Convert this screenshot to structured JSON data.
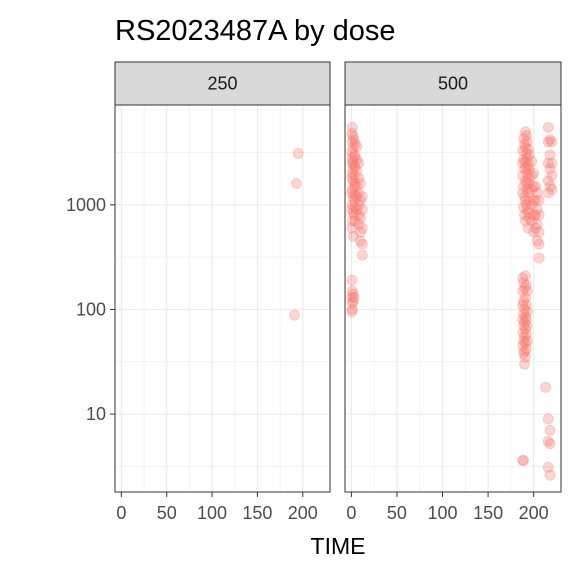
{
  "chart_data": {
    "type": "scatter",
    "title": "RS2023487A by dose",
    "xlabel": "TIME",
    "ylabel": "",
    "y_scale": "log10",
    "xlim": [
      -7,
      230
    ],
    "ylim": [
      1.8,
      9000
    ],
    "x_ticks": [
      0,
      50,
      100,
      150,
      200
    ],
    "x_tick_labels": [
      "0",
      "50",
      "100",
      "150",
      "200"
    ],
    "y_ticks": [
      10,
      100,
      1000
    ],
    "y_tick_labels": [
      "10",
      "100",
      "1000"
    ],
    "point_color": "#f8766d",
    "point_opacity": 0.3,
    "grid": true,
    "panels": [
      {
        "label": "250",
        "points": [
          [
            195,
            3100
          ],
          [
            193,
            1600
          ],
          [
            191,
            88
          ]
        ]
      },
      {
        "label": "500",
        "points": [
          [
            0.5,
            4800
          ],
          [
            0.5,
            3200
          ],
          [
            0.5,
            2500
          ],
          [
            0.5,
            1800
          ],
          [
            0.5,
            1300
          ],
          [
            0.5,
            900
          ],
          [
            0.5,
            600
          ],
          [
            0.5,
            190
          ],
          [
            0.5,
            130
          ],
          [
            0.5,
            95
          ],
          [
            1,
            5500
          ],
          [
            1,
            4000
          ],
          [
            1,
            2800
          ],
          [
            1,
            2000
          ],
          [
            1,
            1400
          ],
          [
            1,
            1000
          ],
          [
            1,
            700
          ],
          [
            1,
            150
          ],
          [
            1,
            115
          ],
          [
            1,
            100
          ],
          [
            2,
            4500
          ],
          [
            2,
            3500
          ],
          [
            2,
            2600
          ],
          [
            2,
            2200
          ],
          [
            2,
            1700
          ],
          [
            2,
            1200
          ],
          [
            2,
            850
          ],
          [
            2,
            500
          ],
          [
            2,
            140
          ],
          [
            2,
            120
          ],
          [
            3,
            4200
          ],
          [
            3,
            3000
          ],
          [
            3,
            2400
          ],
          [
            3,
            1900
          ],
          [
            3,
            1500
          ],
          [
            3,
            1100
          ],
          [
            3,
            800
          ],
          [
            3,
            130
          ],
          [
            4,
            3800
          ],
          [
            4,
            2900
          ],
          [
            4,
            2300
          ],
          [
            4,
            1600
          ],
          [
            4,
            1250
          ],
          [
            4,
            950
          ],
          [
            4,
            700
          ],
          [
            6,
            3600
          ],
          [
            6,
            2700
          ],
          [
            6,
            2100
          ],
          [
            6,
            1500
          ],
          [
            6,
            1200
          ],
          [
            6,
            900
          ],
          [
            8,
            2500
          ],
          [
            8,
            1800
          ],
          [
            8,
            1300
          ],
          [
            8,
            1000
          ],
          [
            8,
            800
          ],
          [
            8,
            650
          ],
          [
            10,
            1600
          ],
          [
            10,
            1100
          ],
          [
            10,
            750
          ],
          [
            10,
            550
          ],
          [
            10,
            450
          ],
          [
            12,
            1200
          ],
          [
            12,
            900
          ],
          [
            12,
            600
          ],
          [
            12,
            420
          ],
          [
            12,
            330
          ],
          [
            188,
            3300
          ],
          [
            188,
            2500
          ],
          [
            188,
            1900
          ],
          [
            188,
            1300
          ],
          [
            188,
            200
          ],
          [
            188,
            150
          ],
          [
            188,
            110
          ],
          [
            188,
            80
          ],
          [
            188,
            60
          ],
          [
            188,
            45
          ],
          [
            188,
            3.6
          ],
          [
            189,
            4300
          ],
          [
            189,
            2700
          ],
          [
            189,
            1500
          ],
          [
            189,
            950
          ],
          [
            189,
            180
          ],
          [
            189,
            120
          ],
          [
            189,
            90
          ],
          [
            189,
            70
          ],
          [
            189,
            50
          ],
          [
            189,
            38
          ],
          [
            189,
            3.6
          ],
          [
            190,
            3800
          ],
          [
            190,
            2200
          ],
          [
            190,
            1200
          ],
          [
            190,
            800
          ],
          [
            190,
            160
          ],
          [
            190,
            100
          ],
          [
            190,
            75
          ],
          [
            190,
            55
          ],
          [
            190,
            40
          ],
          [
            190,
            30
          ],
          [
            191,
            5000
          ],
          [
            191,
            3500
          ],
          [
            191,
            2600
          ],
          [
            191,
            1700
          ],
          [
            191,
            1100
          ],
          [
            191,
            700
          ],
          [
            191,
            210
          ],
          [
            191,
            130
          ],
          [
            191,
            85
          ],
          [
            191,
            65
          ],
          [
            191,
            48
          ],
          [
            191,
            35
          ],
          [
            192,
            4600
          ],
          [
            192,
            3100
          ],
          [
            192,
            2300
          ],
          [
            192,
            1600
          ],
          [
            192,
            1000
          ],
          [
            192,
            170
          ],
          [
            192,
            110
          ],
          [
            192,
            80
          ],
          [
            192,
            58
          ],
          [
            192,
            42
          ],
          [
            193,
            4000
          ],
          [
            193,
            2800
          ],
          [
            193,
            2000
          ],
          [
            193,
            1400
          ],
          [
            193,
            900
          ],
          [
            193,
            150
          ],
          [
            193,
            95
          ],
          [
            193,
            70
          ],
          [
            193,
            50
          ],
          [
            194,
            3400
          ],
          [
            194,
            2400
          ],
          [
            194,
            1800
          ],
          [
            194,
            1300
          ],
          [
            194,
            850
          ],
          [
            194,
            600
          ],
          [
            195,
            3000
          ],
          [
            195,
            2200
          ],
          [
            195,
            1600
          ],
          [
            195,
            1100
          ],
          [
            195,
            750
          ],
          [
            198,
            2600
          ],
          [
            198,
            1900
          ],
          [
            198,
            1400
          ],
          [
            198,
            1000
          ],
          [
            198,
            700
          ],
          [
            200,
            2000
          ],
          [
            200,
            1500
          ],
          [
            200,
            1100
          ],
          [
            200,
            800
          ],
          [
            200,
            550
          ],
          [
            202,
            1500
          ],
          [
            202,
            1100
          ],
          [
            202,
            800
          ],
          [
            202,
            600
          ],
          [
            204,
            1300
          ],
          [
            204,
            900
          ],
          [
            204,
            650
          ],
          [
            204,
            450
          ],
          [
            206,
            1100
          ],
          [
            206,
            800
          ],
          [
            206,
            550
          ],
          [
            206,
            420
          ],
          [
            206,
            310
          ],
          [
            213,
            18
          ],
          [
            216,
            5500
          ],
          [
            216,
            4000
          ],
          [
            216,
            2500
          ],
          [
            216,
            1700
          ],
          [
            216,
            1300
          ],
          [
            216,
            9
          ],
          [
            216,
            5.5
          ],
          [
            216,
            3.1
          ],
          [
            218,
            4200
          ],
          [
            218,
            3000
          ],
          [
            218,
            2200
          ],
          [
            218,
            1500
          ],
          [
            218,
            7
          ],
          [
            218,
            5.2
          ],
          [
            218,
            2.6
          ],
          [
            220,
            4000
          ],
          [
            220,
            2500
          ],
          [
            220,
            1900
          ],
          [
            220,
            1400
          ]
        ]
      }
    ]
  }
}
